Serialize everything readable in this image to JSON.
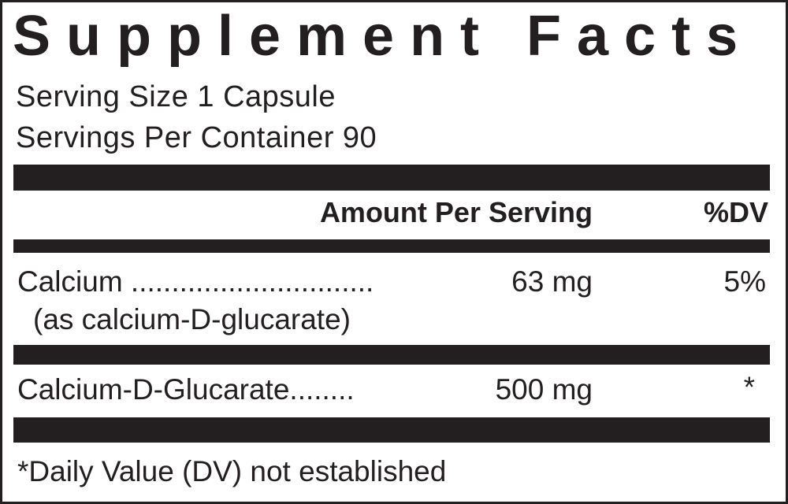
{
  "title": "Supplement Facts",
  "serving_size": "Serving Size 1 Capsule",
  "servings_per_container": "Servings Per Container 90",
  "header": {
    "amount": "Amount Per Serving",
    "dv": "%DV"
  },
  "rows": [
    {
      "name": "Calcium ..............................",
      "amount": "63 mg",
      "dv": "5%",
      "sub": "(as calcium-D-glucarate)"
    },
    {
      "name": "Calcium-D-Glucarate........",
      "amount": "500 mg",
      "dv": "*"
    }
  ],
  "footnote": "*Daily Value (DV) not established",
  "colors": {
    "ink": "#231f20",
    "background": "#ffffff"
  }
}
